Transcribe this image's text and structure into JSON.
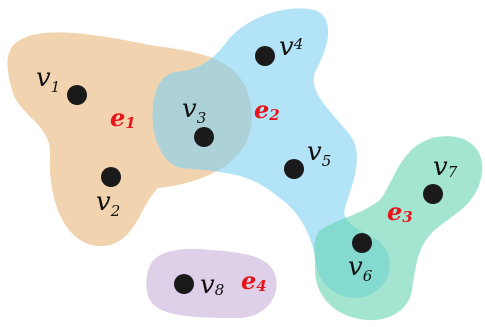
{
  "colors": {
    "e1": "#ecc694",
    "e2": "#7fd0f2",
    "e3": "#66d4b2",
    "e4": "#dccbe8",
    "vertex": "#1a1a1a",
    "edge_label": "#e8141a",
    "vertex_label": "#111111"
  },
  "hyperedges": [
    {
      "id": "e1",
      "label_base": "e",
      "label_sub": "1",
      "vertices": [
        "v1",
        "v2",
        "v3"
      ]
    },
    {
      "id": "e2",
      "label_base": "e",
      "label_sub": "2",
      "vertices": [
        "v3",
        "v4",
        "v5",
        "v6"
      ]
    },
    {
      "id": "e3",
      "label_base": "e",
      "label_sub": "3",
      "vertices": [
        "v6",
        "v7"
      ]
    },
    {
      "id": "e4",
      "label_base": "e",
      "label_sub": "4",
      "vertices": [
        "v8"
      ]
    }
  ],
  "vertices": [
    {
      "id": "v1",
      "label_base": "v",
      "label_sub": "1"
    },
    {
      "id": "v2",
      "label_base": "v",
      "label_sub": "2"
    },
    {
      "id": "v3",
      "label_base": "v",
      "label_sub": "3"
    },
    {
      "id": "v4",
      "label_base": "v",
      "label_sub": "4"
    },
    {
      "id": "v5",
      "label_base": "v",
      "label_sub": "5"
    },
    {
      "id": "v6",
      "label_base": "v",
      "label_sub": "6"
    },
    {
      "id": "v7",
      "label_base": "v",
      "label_sub": "7"
    },
    {
      "id": "v8",
      "label_base": "v",
      "label_sub": "8"
    }
  ]
}
